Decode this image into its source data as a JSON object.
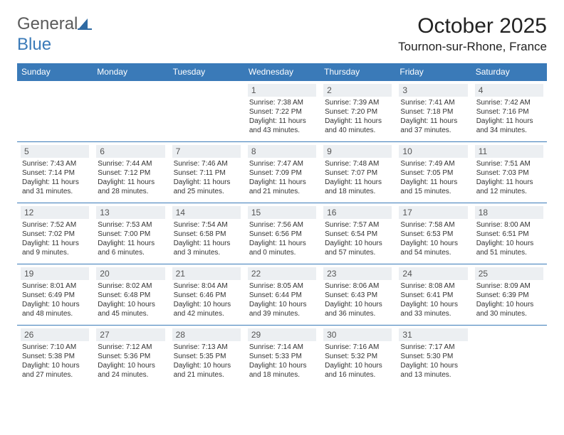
{
  "logo": {
    "word1": "General",
    "word2": "Blue"
  },
  "title": "October 2025",
  "location": "Tournon-sur-Rhone, France",
  "weekdays": [
    "Sunday",
    "Monday",
    "Tuesday",
    "Wednesday",
    "Thursday",
    "Friday",
    "Saturday"
  ],
  "header_bg": "#3a7ab8",
  "header_fg": "#ffffff",
  "daynum_bg": "#eceff2",
  "border_color": "#3a7ab8",
  "days": [
    {
      "n": "",
      "sr": "",
      "ss": "",
      "dl": ""
    },
    {
      "n": "",
      "sr": "",
      "ss": "",
      "dl": ""
    },
    {
      "n": "",
      "sr": "",
      "ss": "",
      "dl": ""
    },
    {
      "n": "1",
      "sr": "Sunrise: 7:38 AM",
      "ss": "Sunset: 7:22 PM",
      "dl": "Daylight: 11 hours and 43 minutes."
    },
    {
      "n": "2",
      "sr": "Sunrise: 7:39 AM",
      "ss": "Sunset: 7:20 PM",
      "dl": "Daylight: 11 hours and 40 minutes."
    },
    {
      "n": "3",
      "sr": "Sunrise: 7:41 AM",
      "ss": "Sunset: 7:18 PM",
      "dl": "Daylight: 11 hours and 37 minutes."
    },
    {
      "n": "4",
      "sr": "Sunrise: 7:42 AM",
      "ss": "Sunset: 7:16 PM",
      "dl": "Daylight: 11 hours and 34 minutes."
    },
    {
      "n": "5",
      "sr": "Sunrise: 7:43 AM",
      "ss": "Sunset: 7:14 PM",
      "dl": "Daylight: 11 hours and 31 minutes."
    },
    {
      "n": "6",
      "sr": "Sunrise: 7:44 AM",
      "ss": "Sunset: 7:12 PM",
      "dl": "Daylight: 11 hours and 28 minutes."
    },
    {
      "n": "7",
      "sr": "Sunrise: 7:46 AM",
      "ss": "Sunset: 7:11 PM",
      "dl": "Daylight: 11 hours and 25 minutes."
    },
    {
      "n": "8",
      "sr": "Sunrise: 7:47 AM",
      "ss": "Sunset: 7:09 PM",
      "dl": "Daylight: 11 hours and 21 minutes."
    },
    {
      "n": "9",
      "sr": "Sunrise: 7:48 AM",
      "ss": "Sunset: 7:07 PM",
      "dl": "Daylight: 11 hours and 18 minutes."
    },
    {
      "n": "10",
      "sr": "Sunrise: 7:49 AM",
      "ss": "Sunset: 7:05 PM",
      "dl": "Daylight: 11 hours and 15 minutes."
    },
    {
      "n": "11",
      "sr": "Sunrise: 7:51 AM",
      "ss": "Sunset: 7:03 PM",
      "dl": "Daylight: 11 hours and 12 minutes."
    },
    {
      "n": "12",
      "sr": "Sunrise: 7:52 AM",
      "ss": "Sunset: 7:02 PM",
      "dl": "Daylight: 11 hours and 9 minutes."
    },
    {
      "n": "13",
      "sr": "Sunrise: 7:53 AM",
      "ss": "Sunset: 7:00 PM",
      "dl": "Daylight: 11 hours and 6 minutes."
    },
    {
      "n": "14",
      "sr": "Sunrise: 7:54 AM",
      "ss": "Sunset: 6:58 PM",
      "dl": "Daylight: 11 hours and 3 minutes."
    },
    {
      "n": "15",
      "sr": "Sunrise: 7:56 AM",
      "ss": "Sunset: 6:56 PM",
      "dl": "Daylight: 11 hours and 0 minutes."
    },
    {
      "n": "16",
      "sr": "Sunrise: 7:57 AM",
      "ss": "Sunset: 6:54 PM",
      "dl": "Daylight: 10 hours and 57 minutes."
    },
    {
      "n": "17",
      "sr": "Sunrise: 7:58 AM",
      "ss": "Sunset: 6:53 PM",
      "dl": "Daylight: 10 hours and 54 minutes."
    },
    {
      "n": "18",
      "sr": "Sunrise: 8:00 AM",
      "ss": "Sunset: 6:51 PM",
      "dl": "Daylight: 10 hours and 51 minutes."
    },
    {
      "n": "19",
      "sr": "Sunrise: 8:01 AM",
      "ss": "Sunset: 6:49 PM",
      "dl": "Daylight: 10 hours and 48 minutes."
    },
    {
      "n": "20",
      "sr": "Sunrise: 8:02 AM",
      "ss": "Sunset: 6:48 PM",
      "dl": "Daylight: 10 hours and 45 minutes."
    },
    {
      "n": "21",
      "sr": "Sunrise: 8:04 AM",
      "ss": "Sunset: 6:46 PM",
      "dl": "Daylight: 10 hours and 42 minutes."
    },
    {
      "n": "22",
      "sr": "Sunrise: 8:05 AM",
      "ss": "Sunset: 6:44 PM",
      "dl": "Daylight: 10 hours and 39 minutes."
    },
    {
      "n": "23",
      "sr": "Sunrise: 8:06 AM",
      "ss": "Sunset: 6:43 PM",
      "dl": "Daylight: 10 hours and 36 minutes."
    },
    {
      "n": "24",
      "sr": "Sunrise: 8:08 AM",
      "ss": "Sunset: 6:41 PM",
      "dl": "Daylight: 10 hours and 33 minutes."
    },
    {
      "n": "25",
      "sr": "Sunrise: 8:09 AM",
      "ss": "Sunset: 6:39 PM",
      "dl": "Daylight: 10 hours and 30 minutes."
    },
    {
      "n": "26",
      "sr": "Sunrise: 7:10 AM",
      "ss": "Sunset: 5:38 PM",
      "dl": "Daylight: 10 hours and 27 minutes."
    },
    {
      "n": "27",
      "sr": "Sunrise: 7:12 AM",
      "ss": "Sunset: 5:36 PM",
      "dl": "Daylight: 10 hours and 24 minutes."
    },
    {
      "n": "28",
      "sr": "Sunrise: 7:13 AM",
      "ss": "Sunset: 5:35 PM",
      "dl": "Daylight: 10 hours and 21 minutes."
    },
    {
      "n": "29",
      "sr": "Sunrise: 7:14 AM",
      "ss": "Sunset: 5:33 PM",
      "dl": "Daylight: 10 hours and 18 minutes."
    },
    {
      "n": "30",
      "sr": "Sunrise: 7:16 AM",
      "ss": "Sunset: 5:32 PM",
      "dl": "Daylight: 10 hours and 16 minutes."
    },
    {
      "n": "31",
      "sr": "Sunrise: 7:17 AM",
      "ss": "Sunset: 5:30 PM",
      "dl": "Daylight: 10 hours and 13 minutes."
    },
    {
      "n": "",
      "sr": "",
      "ss": "",
      "dl": ""
    }
  ]
}
